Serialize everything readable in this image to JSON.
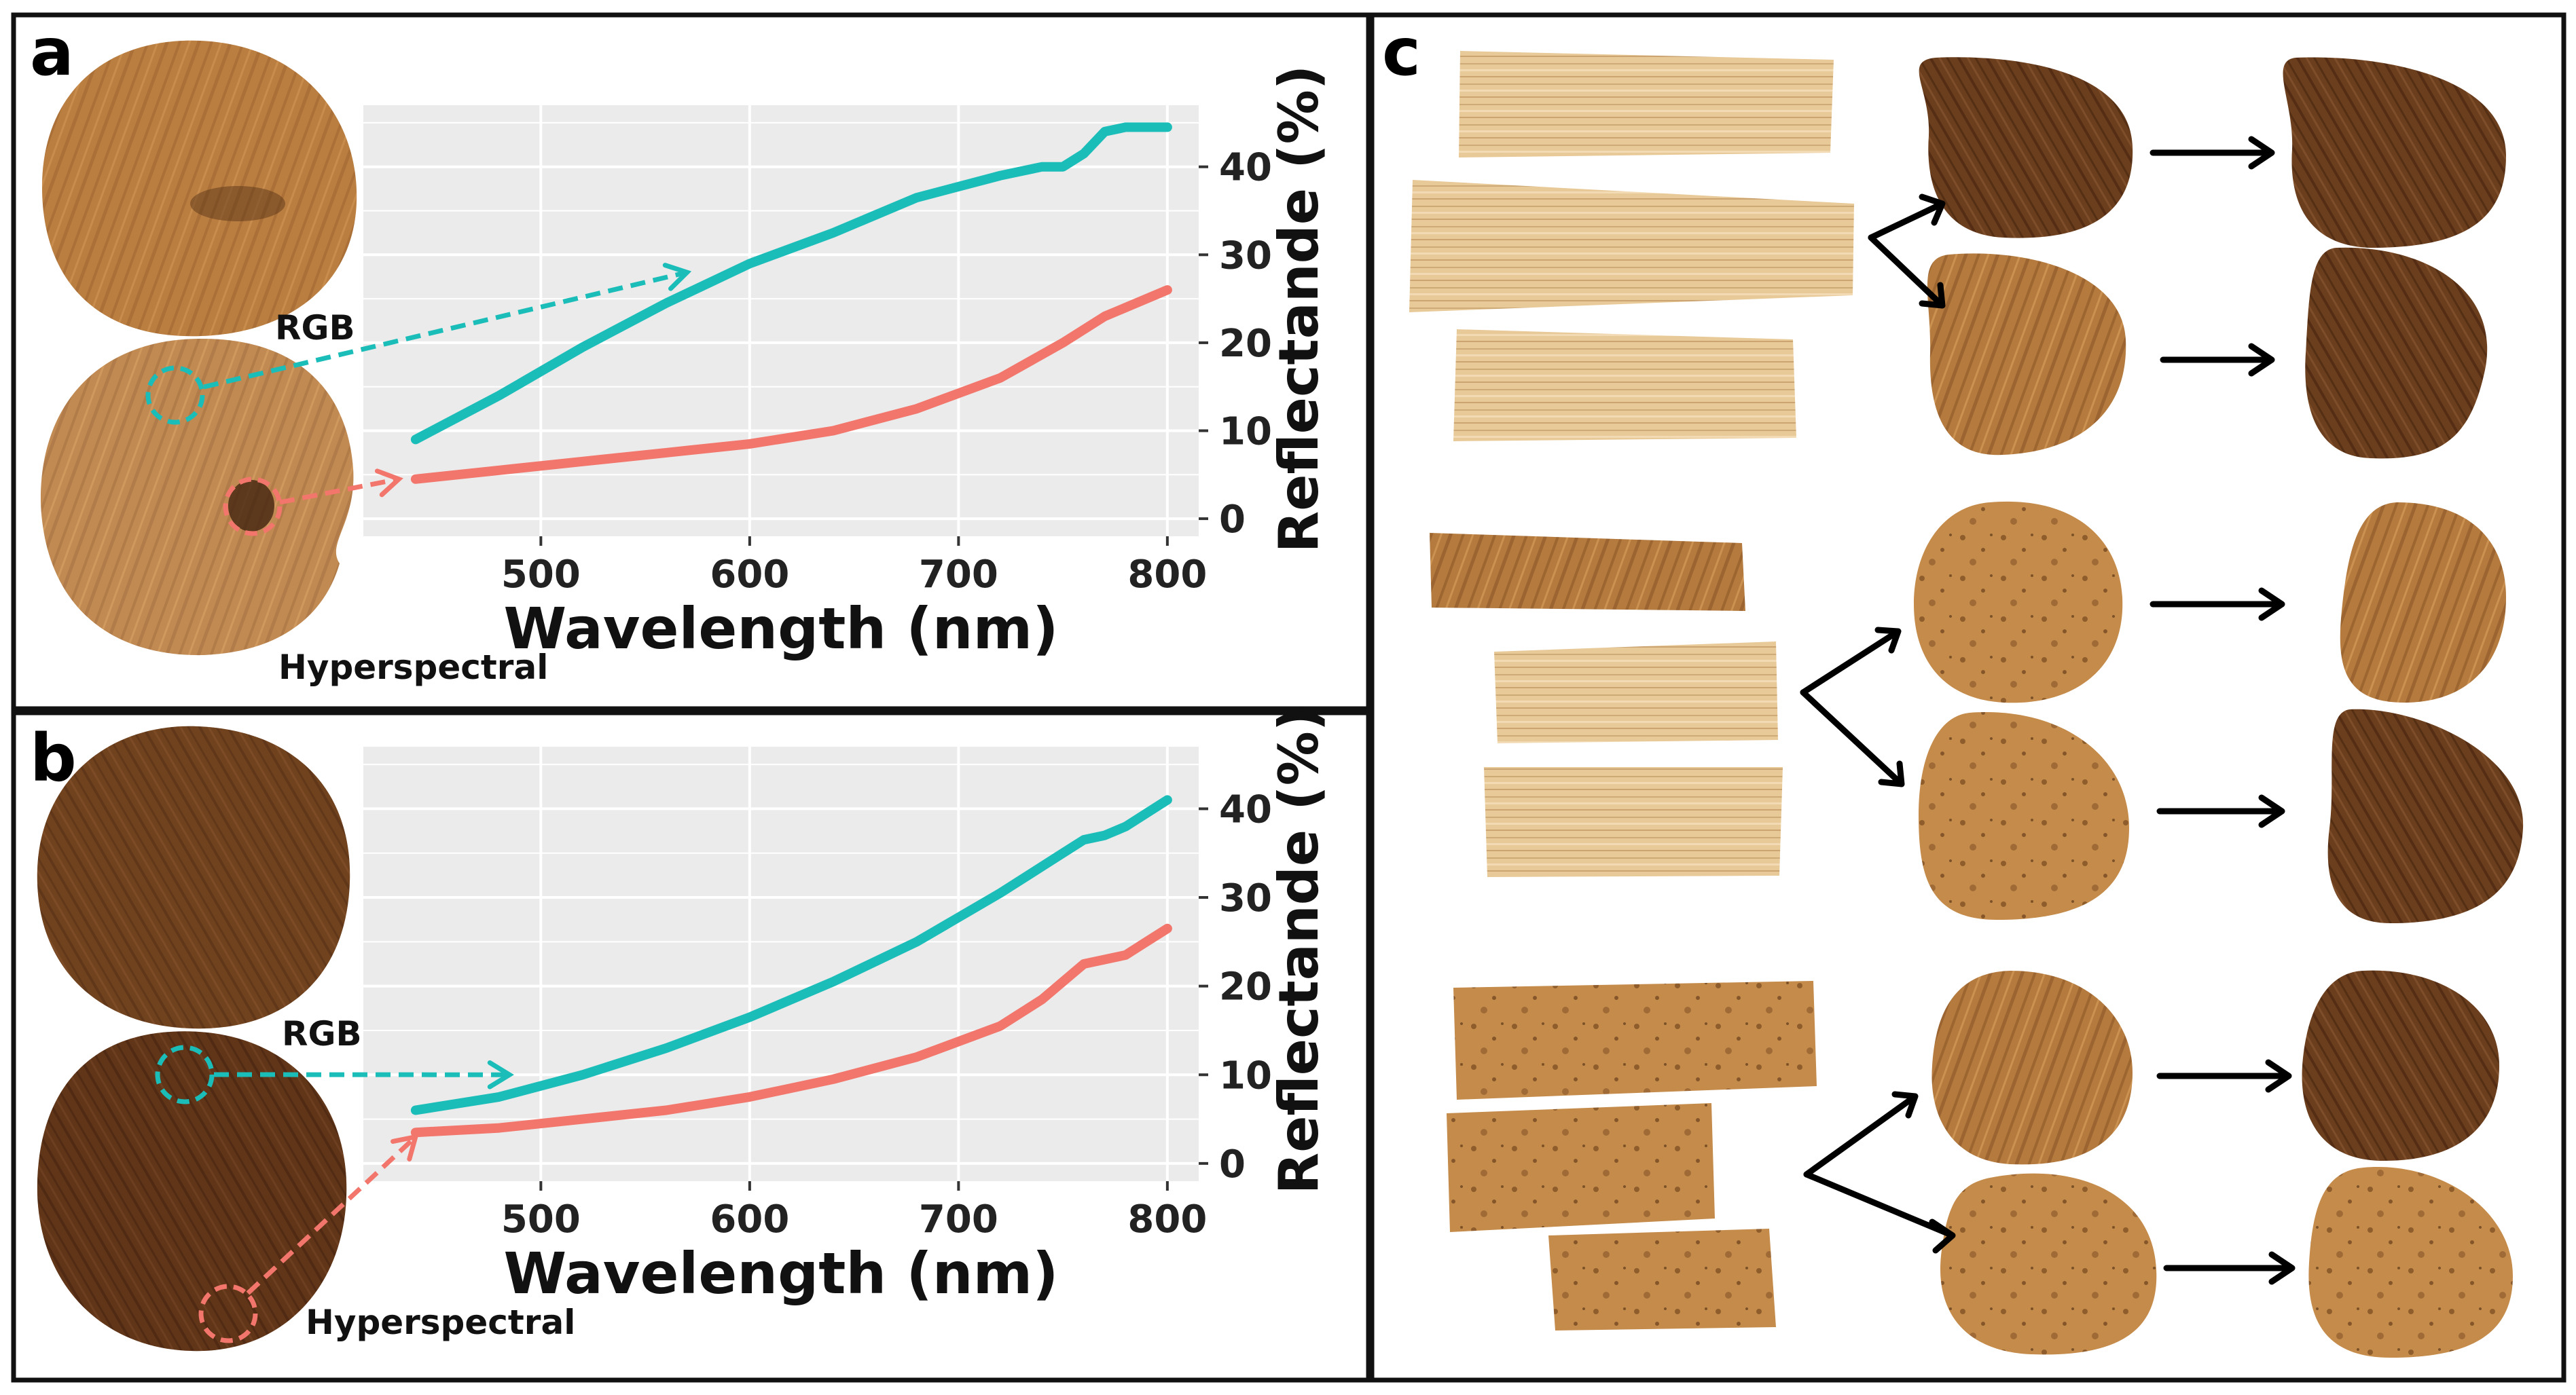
{
  "colors": {
    "rgb_line": "#1bbdb9",
    "hyperspectral_line": "#f2766b",
    "plot_background": "#ebebeb",
    "grid": "#ffffff",
    "arrow": "#000000"
  },
  "figure": {
    "panels": {
      "a": {
        "letter": "a",
        "rgb_label": "RGB",
        "hyperspectral_label": "Hyperspectral",
        "xlabel": "Wavelength (nm)",
        "ylabel": "Reflectande (%)"
      },
      "b": {
        "letter": "b",
        "rgb_label": "RGB",
        "hyperspectral_label": "Hyperspectral",
        "xlabel": "Wavelength (nm)",
        "ylabel": "Reflectande (%)"
      },
      "c": {
        "letter": "c"
      }
    }
  },
  "chart_data": [
    {
      "id": "a",
      "type": "line",
      "title": "",
      "xlabel": "Wavelength (nm)",
      "ylabel": "Reflectande (%)",
      "xlim": [
        415,
        815
      ],
      "ylim": [
        -2,
        47
      ],
      "xticks": [
        500,
        600,
        700,
        800
      ],
      "yticks": [
        0,
        10,
        20,
        30,
        40
      ],
      "series": [
        {
          "name": "RGB",
          "color": "#1bbdb9",
          "x": [
            440,
            480,
            520,
            560,
            600,
            640,
            680,
            720,
            740,
            750,
            760,
            770,
            780,
            790,
            800
          ],
          "y": [
            9,
            14,
            19.5,
            24.5,
            29,
            32.5,
            36.5,
            39,
            40,
            40,
            41.5,
            44,
            44.5,
            44.5,
            44.5
          ]
        },
        {
          "name": "Hyperspectral",
          "color": "#f2766b",
          "x": [
            440,
            480,
            520,
            560,
            600,
            640,
            680,
            720,
            750,
            770,
            800
          ],
          "y": [
            4.5,
            5.5,
            6.5,
            7.5,
            8.5,
            10,
            12.5,
            16,
            20,
            23,
            26
          ]
        }
      ]
    },
    {
      "id": "b",
      "type": "line",
      "title": "",
      "xlabel": "Wavelength (nm)",
      "ylabel": "Reflectande (%)",
      "xlim": [
        415,
        815
      ],
      "ylim": [
        -2,
        47
      ],
      "xticks": [
        500,
        600,
        700,
        800
      ],
      "yticks": [
        0,
        10,
        20,
        30,
        40
      ],
      "series": [
        {
          "name": "RGB",
          "color": "#1bbdb9",
          "x": [
            440,
            480,
            520,
            560,
            600,
            640,
            680,
            720,
            750,
            760,
            770,
            780,
            790,
            800
          ],
          "y": [
            6,
            7.5,
            10,
            13,
            16.5,
            20.5,
            25,
            30.5,
            35,
            36.5,
            37,
            38,
            39.5,
            41
          ]
        },
        {
          "name": "Hyperspectral",
          "color": "#f2766b",
          "x": [
            440,
            480,
            520,
            560,
            600,
            640,
            680,
            720,
            740,
            760,
            780,
            790,
            800
          ],
          "y": [
            3.5,
            4,
            5,
            6,
            7.5,
            9.5,
            12,
            15.5,
            18.5,
            22.5,
            23.5,
            25,
            26.5
          ]
        }
      ]
    }
  ]
}
